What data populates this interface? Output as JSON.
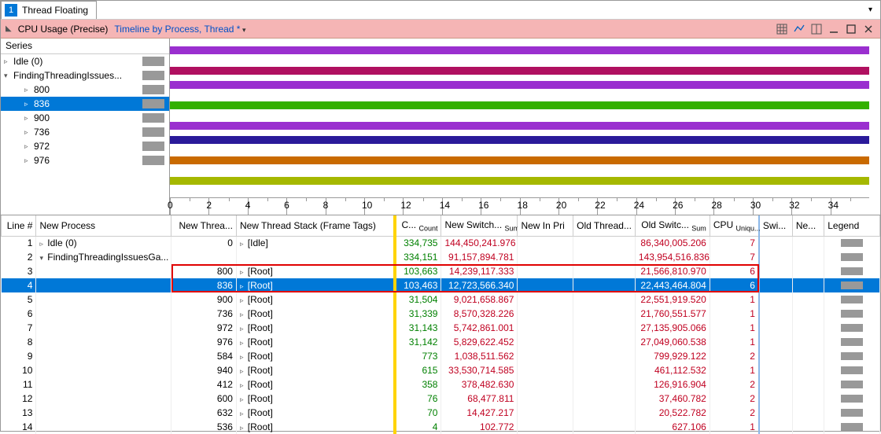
{
  "tab": {
    "badge": "1",
    "title": "Thread Floating"
  },
  "header": {
    "title": "CPU Usage (Precise)",
    "subtitle": "Timeline by Process, Thread *"
  },
  "series": {
    "header": "Series",
    "items": [
      {
        "label": "Idle (0)",
        "expander": "▹",
        "indent": 0,
        "swatch": "#999999"
      },
      {
        "label": "FindingThreadingIssues...",
        "expander": "▾",
        "indent": 0,
        "swatch": "#999999"
      },
      {
        "label": "800",
        "expander": "▹",
        "indent": 2,
        "swatch": "#999999"
      },
      {
        "label": "836",
        "expander": "▹",
        "indent": 2,
        "swatch": "#999999",
        "selected": true
      },
      {
        "label": "900",
        "expander": "▹",
        "indent": 2,
        "swatch": "#999999"
      },
      {
        "label": "736",
        "expander": "▹",
        "indent": 2,
        "swatch": "#999999"
      },
      {
        "label": "972",
        "expander": "▹",
        "indent": 2,
        "swatch": "#999999"
      },
      {
        "label": "976",
        "expander": "▹",
        "indent": 2,
        "swatch": "#999999"
      }
    ]
  },
  "lanes": [
    {
      "color": "#9a2fcf"
    },
    {
      "color": "#b01060",
      "gapBefore": true
    },
    {
      "color": "#9a2fcf"
    },
    {
      "color": "#33b000",
      "gapBefore": true
    },
    {
      "color": "#9a2fcf",
      "gapBefore": true
    },
    {
      "color": "#2a1a9a"
    },
    {
      "color": "#c96a00",
      "gapBefore": true
    },
    {
      "color": "#a5b800",
      "gapBefore": true
    }
  ],
  "ruler": {
    "start": 0,
    "end": 34,
    "step": 2
  },
  "columns": [
    {
      "key": "line",
      "label": "Line #",
      "align": "right"
    },
    {
      "key": "proc",
      "label": "New Process",
      "align": "left"
    },
    {
      "key": "thr",
      "label": "New Threa...",
      "align": "right"
    },
    {
      "key": "stack",
      "label": "New Thread Stack (Frame Tags)",
      "align": "left"
    },
    {
      "key": "count",
      "label": "C...",
      "sub": "Count",
      "align": "right",
      "yellow": true
    },
    {
      "key": "switch",
      "label": "New Switch...",
      "sub": "Sum",
      "align": "right"
    },
    {
      "key": "pri",
      "label": "New In Pri",
      "align": "left"
    },
    {
      "key": "oldthr",
      "label": "Old Thread...",
      "align": "left"
    },
    {
      "key": "oldsw",
      "label": "Old Switc...",
      "sub": "Sum",
      "align": "right"
    },
    {
      "key": "cpu",
      "label": "CPU",
      "sub": "Uniqu...",
      "align": "right",
      "blueSep": true
    },
    {
      "key": "swi",
      "label": "Swi...",
      "align": "left"
    },
    {
      "key": "ne",
      "label": "Ne...",
      "align": "left"
    },
    {
      "key": "leg",
      "label": "Legend",
      "align": "left"
    }
  ],
  "rows": [
    {
      "line": 1,
      "proc": "Idle (0)",
      "exp": "▹",
      "thr": "0",
      "stack": "[Idle]",
      "stackExp": "▹",
      "count": "334,735",
      "switch": "144,450,241.976",
      "oldsw": "86,340,005.206",
      "cpu": "7"
    },
    {
      "line": 2,
      "proc": "FindingThreadingIssuesGa...",
      "exp": "▾",
      "count": "334,151",
      "switch": "91,157,894.781",
      "oldsw": "143,954,516.836",
      "cpu": "7"
    },
    {
      "line": 3,
      "thr": "800",
      "stack": "[Root]",
      "stackExp": "▹",
      "count": "103,663",
      "switch": "14,239,117.333",
      "oldsw": "21,566,810.970",
      "cpu": "6"
    },
    {
      "line": 4,
      "thr": "836",
      "stack": "[Root]",
      "stackExp": "▹",
      "count": "103,463",
      "switch": "12,723,566.340",
      "oldsw": "22,443,464.804",
      "cpu": "6",
      "selected": true
    },
    {
      "line": 5,
      "thr": "900",
      "stack": "[Root]",
      "stackExp": "▹",
      "count": "31,504",
      "switch": "9,021,658.867",
      "oldsw": "22,551,919.520",
      "cpu": "1"
    },
    {
      "line": 6,
      "thr": "736",
      "stack": "[Root]",
      "stackExp": "▹",
      "count": "31,339",
      "switch": "8,570,328.226",
      "oldsw": "21,760,551.577",
      "cpu": "1"
    },
    {
      "line": 7,
      "thr": "972",
      "stack": "[Root]",
      "stackExp": "▹",
      "count": "31,143",
      "switch": "5,742,861.001",
      "oldsw": "27,135,905.066",
      "cpu": "1"
    },
    {
      "line": 8,
      "thr": "976",
      "stack": "[Root]",
      "stackExp": "▹",
      "count": "31,142",
      "switch": "5,829,622.452",
      "oldsw": "27,049,060.538",
      "cpu": "1"
    },
    {
      "line": 9,
      "thr": "584",
      "stack": "[Root]",
      "stackExp": "▹",
      "count": "773",
      "switch": "1,038,511.562",
      "oldsw": "799,929.122",
      "cpu": "2"
    },
    {
      "line": 10,
      "thr": "940",
      "stack": "[Root]",
      "stackExp": "▹",
      "count": "615",
      "switch": "33,530,714.585",
      "oldsw": "461,112.532",
      "cpu": "1"
    },
    {
      "line": 11,
      "thr": "412",
      "stack": "[Root]",
      "stackExp": "▹",
      "count": "358",
      "switch": "378,482.630",
      "oldsw": "126,916.904",
      "cpu": "2"
    },
    {
      "line": 12,
      "thr": "600",
      "stack": "[Root]",
      "stackExp": "▹",
      "count": "76",
      "switch": "68,477.811",
      "oldsw": "37,460.782",
      "cpu": "2"
    },
    {
      "line": 13,
      "thr": "632",
      "stack": "[Root]",
      "stackExp": "▹",
      "count": "70",
      "switch": "14,427.217",
      "oldsw": "20,522.782",
      "cpu": "2"
    },
    {
      "line": 14,
      "thr": "536",
      "stack": "[Root]",
      "stackExp": "▹",
      "count": "4",
      "switch": "102.772",
      "oldsw": "627.106",
      "cpu": "1"
    }
  ],
  "redbox": {
    "rowStart": 3,
    "rowEnd": 4,
    "colStart": "thr",
    "colEnd": "cpu"
  }
}
